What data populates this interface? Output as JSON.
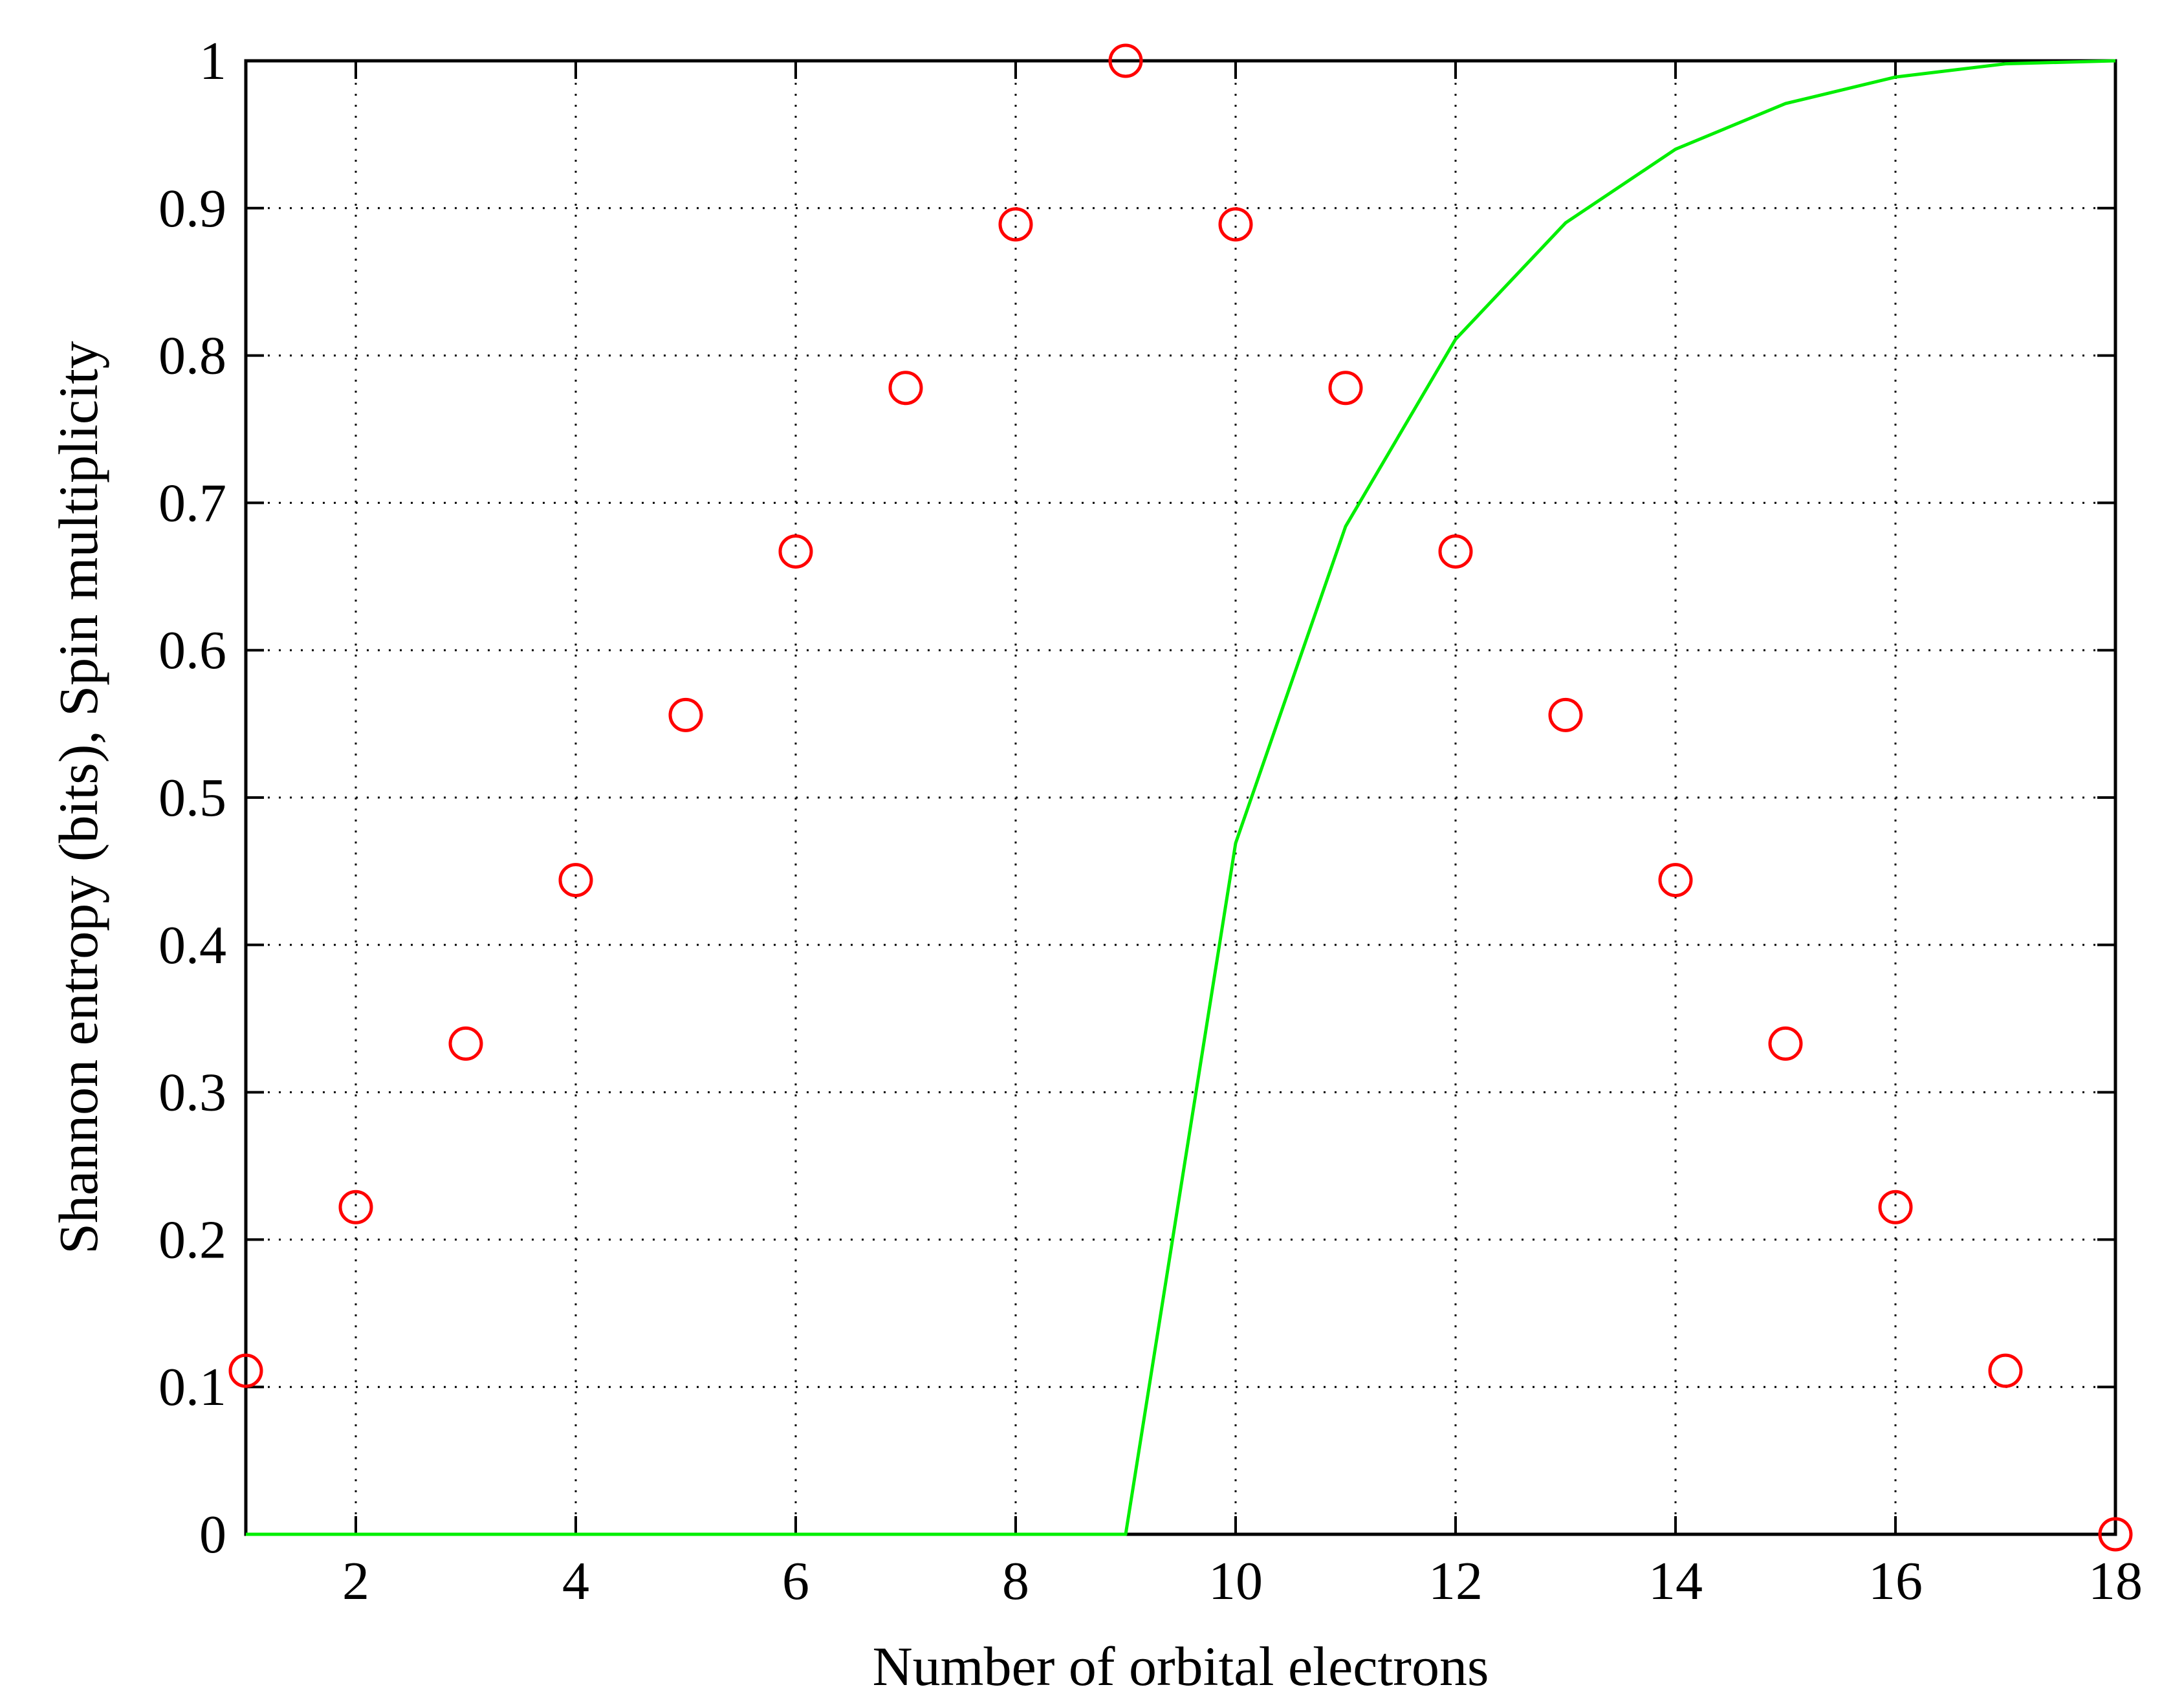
{
  "chart_data": {
    "type": "scatter",
    "title": "",
    "xlabel": "Number of orbital electrons",
    "ylabel": "Shannon entropy (bits), Spin multiplicity",
    "xlim": [
      1,
      18
    ],
    "ylim": [
      0,
      1
    ],
    "x_ticks": [
      2,
      4,
      6,
      8,
      10,
      12,
      14,
      16,
      18
    ],
    "x_tick_labels": [
      "2",
      "4",
      "6",
      "8",
      "10",
      "12",
      "14",
      "16",
      "18"
    ],
    "y_ticks": [
      0,
      0.1,
      0.2,
      0.3,
      0.4,
      0.5,
      0.6,
      0.7,
      0.8,
      0.9,
      1
    ],
    "y_tick_labels": [
      "0",
      "0.1",
      "0.2",
      "0.3",
      "0.4",
      "0.5",
      "0.6",
      "0.7",
      "0.8",
      "0.9",
      "1"
    ],
    "grid": true,
    "series": [
      {
        "style": "circle-markers",
        "color": "#ff0000",
        "x": [
          1,
          2,
          3,
          4,
          5,
          6,
          7,
          8,
          9,
          10,
          11,
          12,
          13,
          14,
          15,
          16,
          17,
          18
        ],
        "y": [
          0.111,
          0.222,
          0.333,
          0.444,
          0.556,
          0.667,
          0.778,
          0.889,
          1.0,
          0.889,
          0.778,
          0.667,
          0.556,
          0.444,
          0.333,
          0.222,
          0.111,
          0.0
        ]
      },
      {
        "style": "line",
        "color": "#00ee00",
        "x": [
          1,
          2,
          3,
          4,
          5,
          6,
          7,
          8,
          9,
          10,
          11,
          12,
          13,
          14,
          15,
          16,
          17,
          18
        ],
        "y": [
          0,
          0,
          0,
          0,
          0,
          0,
          0,
          0,
          0,
          0.469,
          0.684,
          0.811,
          0.89,
          0.94,
          0.971,
          0.989,
          0.998,
          1.0
        ]
      }
    ]
  }
}
